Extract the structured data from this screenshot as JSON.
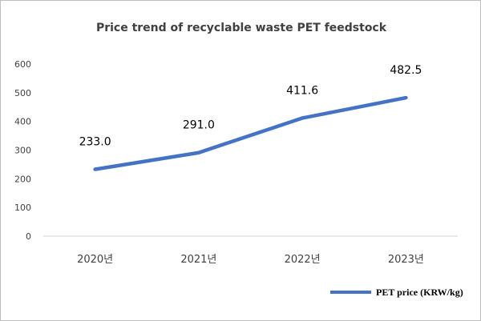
{
  "chart_data": {
    "type": "line",
    "title": "Price trend of recyclable waste PET feedstock",
    "categories": [
      "2020년",
      "2021년",
      "2022년",
      "2023년"
    ],
    "series": [
      {
        "name": "PET price (KRW/kg)",
        "values": [
          233.0,
          291.0,
          411.6,
          482.5
        ],
        "labels": [
          "233.0",
          "291.0",
          "411.6",
          "482.5"
        ],
        "color": "#4472c4"
      }
    ],
    "ylim": [
      0,
      600
    ],
    "yticks": [
      "0",
      "100",
      "200",
      "300",
      "400",
      "500",
      "600"
    ],
    "grid": false,
    "legend": "bottom-right",
    "xlabel": "",
    "ylabel": ""
  }
}
